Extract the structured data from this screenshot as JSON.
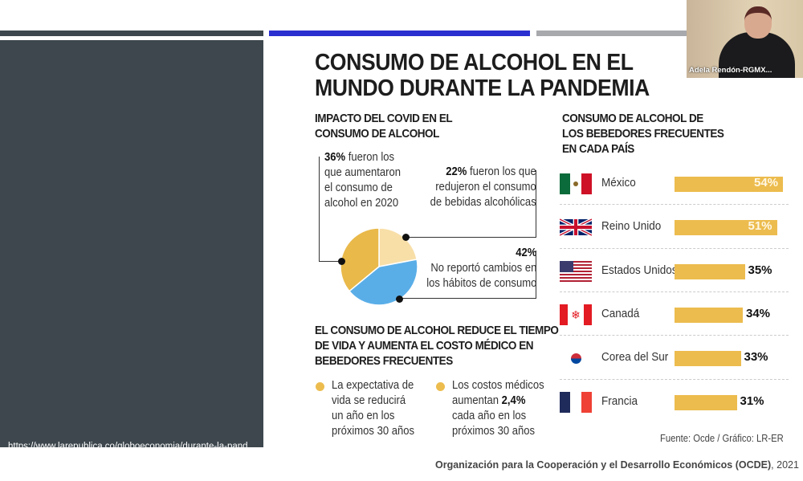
{
  "url": "https://www.larepublica.co/globoeconomia/durante-la-pandemia-36-de-las-personas-en-el-mundo-aumentaron-consumo-de-alcohol-3172147",
  "title": [
    "CONSUMO DE ALCOHOL EN EL",
    "MUNDO DURANTE LA PANDEMIA"
  ],
  "impact": {
    "heading": [
      "IMPACTO DEL COVID EN EL",
      "CONSUMO DE ALCOHOL"
    ],
    "increased": {
      "pct": "36%",
      "text1": " fueron los",
      "text2": "que aumentaron",
      "text3": "el consumo de",
      "text4": "alcohol en 2020"
    },
    "reduced": {
      "pct": "22%",
      "text1": " fueron los que",
      "text2": "redujeron el consumo",
      "text3": "de bebidas alcohólicas"
    },
    "nochange": {
      "pct": "42%",
      "text1": "No reportó cambios en",
      "text2": "los hábitos de consumo"
    }
  },
  "chart_data": [
    {
      "type": "pie",
      "title": "IMPACTO DEL COVID EN EL CONSUMO DE ALCOHOL",
      "labels": [
        "Redujeron",
        "No reportó cambios",
        "Aumentaron"
      ],
      "values": [
        22,
        42,
        36
      ],
      "colors": [
        "#f8dfa8",
        "#5aaee8",
        "#e9b94a"
      ]
    },
    {
      "type": "bar",
      "title": "CONSUMO DE ALCOHOL DE LOS BEBEDORES FRECUENTES EN CADA PAÍS",
      "categories": [
        "México",
        "Reino Unido",
        "Estados Unidos",
        "Canadá",
        "Corea del Sur",
        "Francia"
      ],
      "values": [
        54,
        51,
        35,
        34,
        33,
        31
      ],
      "labels": [
        "54%",
        "51%",
        "35%",
        "34%",
        "33%",
        "31%"
      ],
      "unit": "%"
    }
  ],
  "countries_heading": [
    "CONSUMO DE ALCOHOL DE",
    "LOS BEBEDORES FRECUENTES",
    "EN CADA PAÍS"
  ],
  "health": {
    "heading": [
      "EL CONSUMO DE ALCOHOL REDUCE EL TIEMPO",
      "DE VIDA Y AUMENTA EL COSTO MÉDICO EN",
      "BEBEDORES FRECUENTES"
    ],
    "life": [
      "La expectativa de",
      "vida se reducirá",
      "un año en los",
      "próximos 30 años"
    ],
    "cost": {
      "l1": "Los costos médicos",
      "l2a": "aumentan ",
      "l2b": "2,4%",
      "l3": "cada año en los",
      "l4": "próximos 30 años"
    }
  },
  "source": "Fuente: Ocde / Gráfico: LR-ER",
  "footer": {
    "org": "Organización para la Cooperación y el Desarrollo Económicos (OCDE)",
    "year": ", 2021"
  },
  "webcam": {
    "name": "Adela Rendón-RGMX..."
  }
}
